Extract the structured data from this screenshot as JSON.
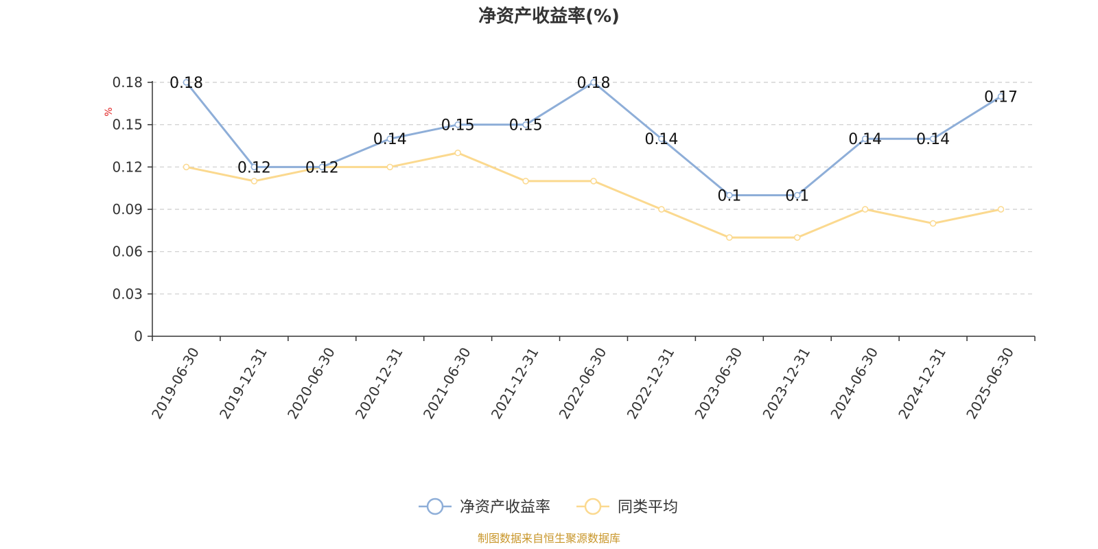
{
  "chart_data": {
    "type": "line",
    "title": "净资产收益率(%)",
    "y_unit": "%",
    "categories": [
      "2019-06-30",
      "2019-12-31",
      "2020-06-30",
      "2020-12-31",
      "2021-06-30",
      "2021-12-31",
      "2022-06-30",
      "2022-12-31",
      "2023-06-30",
      "2023-12-31",
      "2024-06-30",
      "2024-12-31",
      "2025-06-30"
    ],
    "y_ticks": [
      "0",
      "0.03",
      "0.06",
      "0.09",
      "0.12",
      "0.15",
      "0.18"
    ],
    "ylim": [
      0,
      0.18
    ],
    "grid": true,
    "legend_position": "bottom-center",
    "series": [
      {
        "name": "净资产收益率",
        "color": "#8eaed8",
        "values": [
          0.18,
          0.12,
          0.12,
          0.14,
          0.15,
          0.15,
          0.18,
          0.14,
          0.1,
          0.1,
          0.14,
          0.14,
          0.17
        ],
        "labels": [
          "0.18",
          "0.12",
          "0.12",
          "0.14",
          "0.15",
          "0.15",
          "0.18",
          "0.14",
          "0.1",
          "0.1",
          "0.14",
          "0.14",
          "0.17"
        ]
      },
      {
        "name": "同类平均",
        "color": "#fbd98f",
        "values": [
          0.12,
          0.11,
          0.12,
          0.12,
          0.13,
          0.11,
          0.11,
          0.09,
          0.07,
          0.07,
          0.09,
          0.08,
          0.09
        ]
      }
    ]
  },
  "source_text": "制图数据来自恒生聚源数据库",
  "colors": {
    "unit": "#e02020",
    "source": "#c8962a",
    "axis": "#333333",
    "grid": "#cccccc"
  }
}
